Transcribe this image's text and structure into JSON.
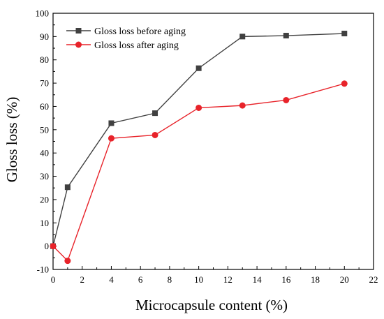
{
  "chart_data": {
    "type": "line",
    "xlabel": "Microcapsule content (%)",
    "ylabel": "Gloss loss (%)",
    "xlim": [
      0,
      22
    ],
    "ylim": [
      -10,
      100
    ],
    "x_ticks": [
      0,
      2,
      4,
      6,
      8,
      10,
      12,
      14,
      16,
      18,
      20,
      22
    ],
    "y_ticks": [
      -10,
      0,
      10,
      20,
      30,
      40,
      50,
      60,
      70,
      80,
      90,
      100
    ],
    "grid": false,
    "legend_position": "top-left",
    "series": [
      {
        "name": "Gloss loss before aging",
        "color": "#404040",
        "marker": "square",
        "x": [
          0,
          1,
          4,
          7,
          10,
          13,
          16,
          20
        ],
        "y": [
          0,
          25.3,
          52.8,
          57.1,
          76.4,
          90.0,
          90.4,
          91.3
        ]
      },
      {
        "name": "Gloss loss after aging",
        "color": "#e8232a",
        "marker": "circle",
        "x": [
          0,
          1,
          4,
          7,
          10,
          13,
          16,
          20
        ],
        "y": [
          0,
          -6.3,
          46.3,
          47.7,
          59.4,
          60.4,
          62.7,
          69.8
        ]
      }
    ]
  }
}
